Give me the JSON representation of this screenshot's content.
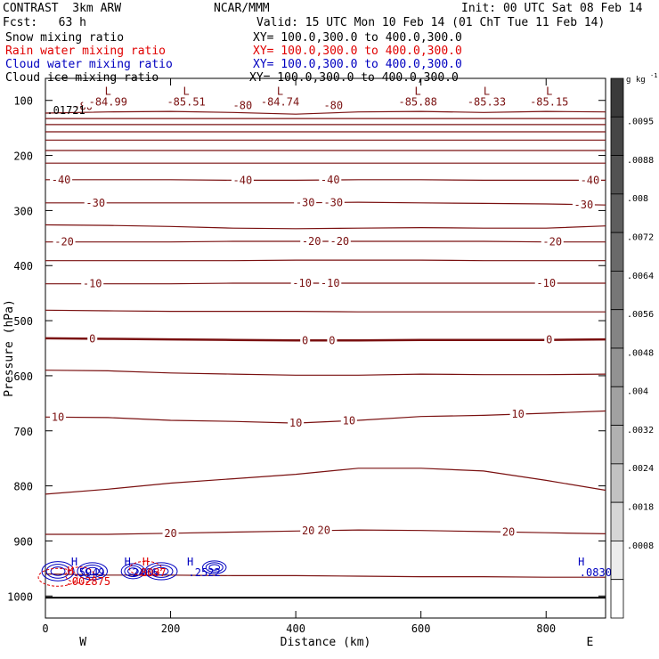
{
  "header": {
    "model": "CONTRAST",
    "grid": "3km ARW",
    "org": "NCAR/MMM",
    "init": "Init: 00 UTC Sat 08 Feb 14",
    "fcst_label": "Fcst:",
    "fcst_value": "63 h",
    "valid": "Valid: 15 UTC Mon 10 Feb 14 (01 ChT Tue 11 Feb 14)"
  },
  "fields": [
    {
      "name": "Snow mixing ratio",
      "xy": "XY= 100.0,300.0 to 400.0,300.0",
      "color": "#000000"
    },
    {
      "name": "Rain water mixing ratio",
      "xy": "XY= 100.0,300.0 to 400.0,300.0",
      "color": "#e00000"
    },
    {
      "name": "Cloud water mixing ratio",
      "xy": "XY= 100.0,300.0 to 400.0,300.0",
      "color": "#0000c0"
    },
    {
      "name": "Cloud ice mixing ratio",
      "xy": "XY= 100.0,300.0 to 400.0,300.0",
      "color": "#000000"
    }
  ],
  "chart_data": {
    "type": "contour",
    "xlabel": "Distance (km)",
    "ylabel": "Pressure (hPa)",
    "xlim": [
      0,
      895
    ],
    "ylim": [
      1040,
      60
    ],
    "x_ticks": [
      0,
      200,
      400,
      600,
      800
    ],
    "y_ticks": [
      100,
      200,
      300,
      400,
      500,
      600,
      700,
      800,
      900,
      1000
    ],
    "x_end_labels": {
      "left": "W",
      "right": "E"
    },
    "contour_color": "#7a1010",
    "isotherms": [
      {
        "p": [
          123,
          121,
          120,
          122,
          125,
          121,
          120,
          122,
          120,
          121
        ]
      },
      {
        "p": [
          133,
          133,
          133,
          133,
          133,
          133,
          133,
          133,
          133,
          133
        ]
      },
      {
        "p": [
          144,
          144,
          144,
          144,
          144,
          144,
          144,
          144,
          144,
          144
        ]
      },
      {
        "p": [
          157,
          157,
          157,
          157,
          157,
          157,
          157,
          157,
          157,
          157
        ]
      },
      {
        "p": [
          172,
          172,
          172,
          172,
          172,
          172,
          172,
          172,
          172,
          172
        ]
      },
      {
        "p": [
          191,
          191,
          191,
          191,
          191,
          191,
          191,
          191,
          191,
          191
        ]
      },
      {
        "p": [
          214,
          214,
          214,
          214,
          214,
          214,
          214,
          214,
          214,
          214
        ]
      },
      {
        "p": [
          244,
          244,
          244,
          245,
          245,
          244,
          244,
          245,
          245,
          245
        ],
        "label": "-40",
        "label_x": [
          25,
          315,
          455,
          870
        ]
      },
      {
        "p": [
          286,
          286,
          286,
          286,
          286,
          285,
          286,
          287,
          288,
          290
        ],
        "label": "-30",
        "label_x": [
          80,
          415,
          460,
          860
        ]
      },
      {
        "p": [
          326,
          327,
          329,
          332,
          333,
          332,
          331,
          332,
          332,
          328
        ]
      },
      {
        "p": [
          357,
          357,
          357,
          356,
          356,
          356,
          356,
          356,
          357,
          357
        ],
        "label": "-20",
        "label_x": [
          30,
          425,
          470,
          810
        ]
      },
      {
        "p": [
          391,
          391,
          391,
          391,
          390,
          390,
          390,
          391,
          391,
          391
        ]
      },
      {
        "p": [
          433,
          433,
          433,
          432,
          432,
          432,
          432,
          432,
          432,
          432
        ],
        "label": "-10",
        "label_x": [
          75,
          410,
          455,
          800
        ]
      },
      {
        "p": [
          481,
          482,
          483,
          483,
          483,
          484,
          484,
          484,
          484,
          484
        ]
      },
      {
        "p": [
          532,
          533,
          534,
          535,
          536,
          536,
          535,
          535,
          535,
          534
        ],
        "label": "0",
        "label_x": [
          75,
          415,
          458,
          805
        ],
        "bold": true
      },
      {
        "p": [
          590,
          591,
          595,
          597,
          599,
          599,
          597,
          598,
          598,
          597
        ]
      },
      {
        "p": [
          675,
          676,
          681,
          683,
          686,
          681,
          674,
          672,
          668,
          664
        ],
        "label": "10",
        "label_x": [
          20,
          400,
          485,
          755
        ]
      },
      {
        "p": [
          815,
          806,
          795,
          787,
          779,
          768,
          768,
          773,
          790,
          808
        ]
      },
      {
        "p": [
          888,
          888,
          886,
          884,
          882,
          880,
          881,
          883,
          885,
          887
        ],
        "label": "20",
        "label_x": [
          200,
          420,
          445,
          740
        ]
      },
      {
        "p": [
          960,
          962,
          962,
          963,
          963,
          964,
          965,
          965,
          966,
          966
        ]
      },
      {
        "p": [
          1003,
          1003,
          1003,
          1003,
          1003,
          1003,
          1003,
          1003,
          1003,
          1003
        ],
        "black": true
      }
    ],
    "contour_x": [
      0,
      100,
      200,
      300,
      400,
      500,
      600,
      700,
      800,
      895
    ],
    "extrema": [
      {
        "type": "L",
        "x": 100,
        "p": 90,
        "value": "-84.99"
      },
      {
        "type": "L",
        "x": 225,
        "p": 90,
        "value": "-85.51"
      },
      {
        "type": "L",
        "x": 375,
        "p": 90,
        "value": "-84.74"
      },
      {
        "type": "L",
        "x": 595,
        "p": 90,
        "value": "-85.88"
      },
      {
        "type": "L",
        "x": 705,
        "p": 90,
        "value": "-85.33"
      },
      {
        "type": "L",
        "x": 805,
        "p": 90,
        "value": "-85.15"
      }
    ],
    "upper_labels": [
      {
        "text": "-80",
        "x": 60,
        "p": 111
      },
      {
        "text": "-80",
        "x": 315,
        "p": 109
      },
      {
        "text": "-80",
        "x": 460,
        "p": 109
      }
    ],
    "corner_value": {
      "text": ".01721",
      "x": 2,
      "p": 118
    },
    "cloud_water_maxima": [
      {
        "label": "H",
        "value": ".5949",
        "x": 15,
        "p": 948
      },
      {
        "label": "H",
        "value": ".2466",
        "x": 100,
        "p": 948
      },
      {
        "label": "H",
        "value": ".2522",
        "x": 200,
        "p": 948
      },
      {
        "label": "H",
        "value": ".0830",
        "x": 825,
        "p": 948
      }
    ],
    "rain_maxima": [
      {
        "label": "H",
        "value": ".002875",
        "x": 15,
        "p": 964
      },
      {
        "label": "H",
        "value": "8037",
        "x": 135,
        "p": 948
      }
    ],
    "colorbar": {
      "units": "g kg",
      "units_exp": "-1",
      "levels": [
        ".0095",
        ".0088",
        ".008",
        ".0072",
        ".0064",
        ".0056",
        ".0048",
        ".004",
        ".0032",
        ".0024",
        ".0018",
        ".0008"
      ],
      "colors": [
        "#3a3a3a",
        "#464646",
        "#525252",
        "#5e5e5e",
        "#6a6a6a",
        "#777777",
        "#848484",
        "#929292",
        "#a1a1a1",
        "#b1b1b1",
        "#c2c2c2",
        "#d6d6d6",
        "#ececec",
        "#ffffff"
      ]
    }
  }
}
